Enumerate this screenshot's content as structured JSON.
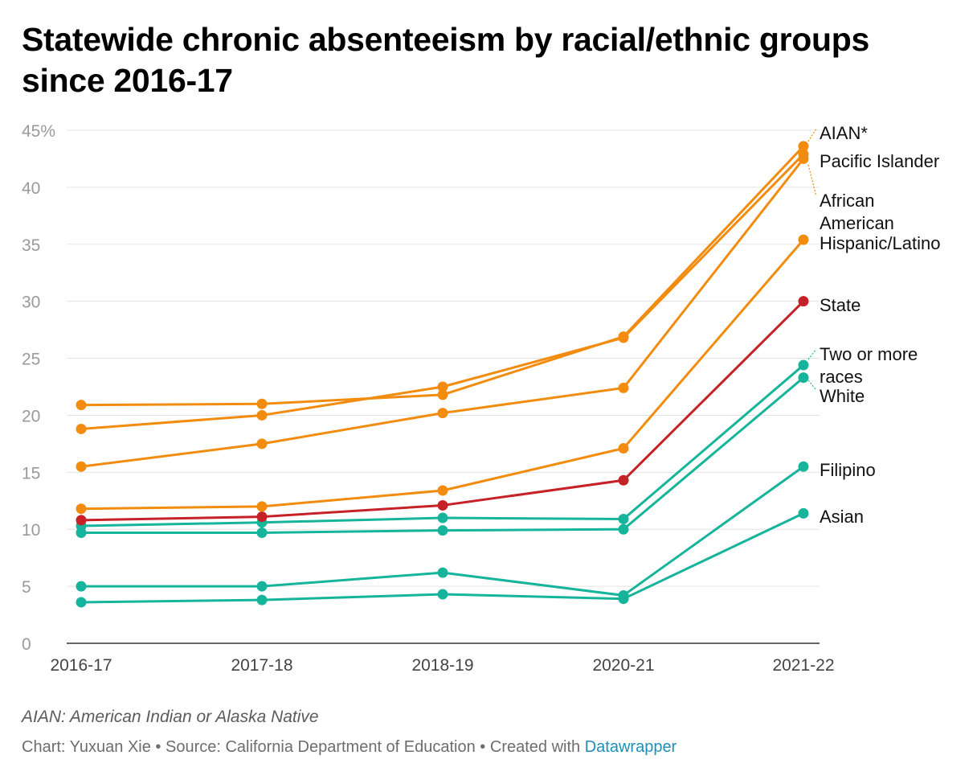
{
  "title": "Statewide chronic absenteeism by racial/ethnic groups since 2016-17",
  "note": "AIAN: American Indian or Alaska Native",
  "credit": {
    "chart_by": "Chart: Yuxuan Xie",
    "separator": " • ",
    "source": "Source: California Department of Education",
    "created": "Created with ",
    "tool": "Datawrapper"
  },
  "colors": {
    "orange": "#f28c0f",
    "red": "#c62127",
    "teal": "#17b49c",
    "grid": "#e3e3e3",
    "axis_text": "#9a9a9a"
  },
  "chart_data": {
    "type": "line",
    "x": [
      "2016-17",
      "2017-18",
      "2018-19",
      "2020-21",
      "2021-22"
    ],
    "ylim": [
      0,
      45
    ],
    "yticks": [
      "0",
      "5",
      "10",
      "15",
      "20",
      "25",
      "30",
      "35",
      "40",
      "45%"
    ],
    "grid": true,
    "legend": "direct labels at line ends, right",
    "series": [
      {
        "name": "AIAN*",
        "color": "orange",
        "values": [
          20.9,
          21.0,
          21.8,
          26.9,
          43.6
        ]
      },
      {
        "name": "Pacific Islander",
        "color": "orange",
        "values": [
          18.8,
          20.0,
          22.5,
          26.8,
          42.9
        ]
      },
      {
        "name": "African American",
        "color": "orange",
        "values": [
          15.5,
          17.5,
          20.2,
          22.4,
          42.5
        ]
      },
      {
        "name": "Hispanic/Latino",
        "color": "orange",
        "values": [
          11.8,
          12.0,
          13.4,
          17.1,
          35.4
        ]
      },
      {
        "name": "State",
        "color": "red",
        "values": [
          10.8,
          11.1,
          12.1,
          14.3,
          30.0
        ]
      },
      {
        "name": "Two or more races",
        "color": "teal",
        "values": [
          10.3,
          10.6,
          11.0,
          10.9,
          24.4
        ]
      },
      {
        "name": "White",
        "color": "teal",
        "values": [
          9.7,
          9.7,
          9.9,
          10.0,
          23.3
        ]
      },
      {
        "name": "Filipino",
        "color": "teal",
        "values": [
          5.0,
          5.0,
          6.2,
          4.2,
          15.5
        ]
      },
      {
        "name": "Asian",
        "color": "teal",
        "values": [
          3.6,
          3.8,
          4.3,
          3.9,
          11.4
        ]
      }
    ]
  }
}
